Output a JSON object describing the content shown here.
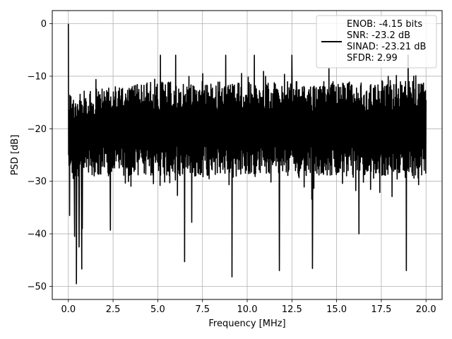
{
  "chart_data": {
    "type": "line",
    "xlabel": "Frequency [MHz]",
    "ylabel": "PSD [dB]",
    "xlim": [
      -0.9,
      20.9
    ],
    "ylim": [
      -52.5,
      2.5
    ],
    "xticks": [
      0.0,
      2.5,
      5.0,
      7.5,
      10.0,
      12.5,
      15.0,
      17.5,
      20.0
    ],
    "xtick_labels": [
      "0.0",
      "2.5",
      "5.0",
      "7.5",
      "10.0",
      "12.5",
      "15.0",
      "17.5",
      "20.0"
    ],
    "yticks": [
      0,
      -10,
      -20,
      -30,
      -40,
      -50
    ],
    "ytick_labels": [
      "0",
      "−10",
      "−20",
      "−30",
      "−40",
      "−50"
    ],
    "grid": true,
    "legend_position": "top-right",
    "legend_lines": [
      "ENOB: -4.15 bits",
      "SNR: -23.2 dB",
      "SINAD: -23.21 dB",
      "SFDR: 2.99"
    ],
    "series": [
      {
        "color": "#000000",
        "description_of_shape": "dense noise floor, roughly -29 to -11 dB across 0-20 MHz, peak 0 dB at DC",
        "x_start": 0.0,
        "x_end": 20.0,
        "peaks": [
          {
            "x": 0.0,
            "y": 0
          },
          {
            "x": 5.15,
            "y": -6
          },
          {
            "x": 6.0,
            "y": -6
          },
          {
            "x": 8.8,
            "y": -6
          },
          {
            "x": 10.4,
            "y": -6
          },
          {
            "x": 12.5,
            "y": -6
          },
          {
            "x": 19.0,
            "y": -6
          }
        ],
        "dips": [
          {
            "x": 0.07,
            "y": -36.5
          },
          {
            "x": 0.35,
            "y": -40.5
          },
          {
            "x": 0.45,
            "y": -49.5
          },
          {
            "x": 0.6,
            "y": -42.5
          },
          {
            "x": 0.75,
            "y": -46.7
          },
          {
            "x": 0.78,
            "y": -39
          },
          {
            "x": 2.35,
            "y": -39.3
          },
          {
            "x": 6.5,
            "y": -45.3
          },
          {
            "x": 6.9,
            "y": -37.8
          },
          {
            "x": 9.15,
            "y": -48.2
          },
          {
            "x": 11.8,
            "y": -47
          },
          {
            "x": 13.65,
            "y": -46.6
          },
          {
            "x": 16.25,
            "y": -40
          },
          {
            "x": 18.9,
            "y": -47
          }
        ]
      }
    ]
  }
}
